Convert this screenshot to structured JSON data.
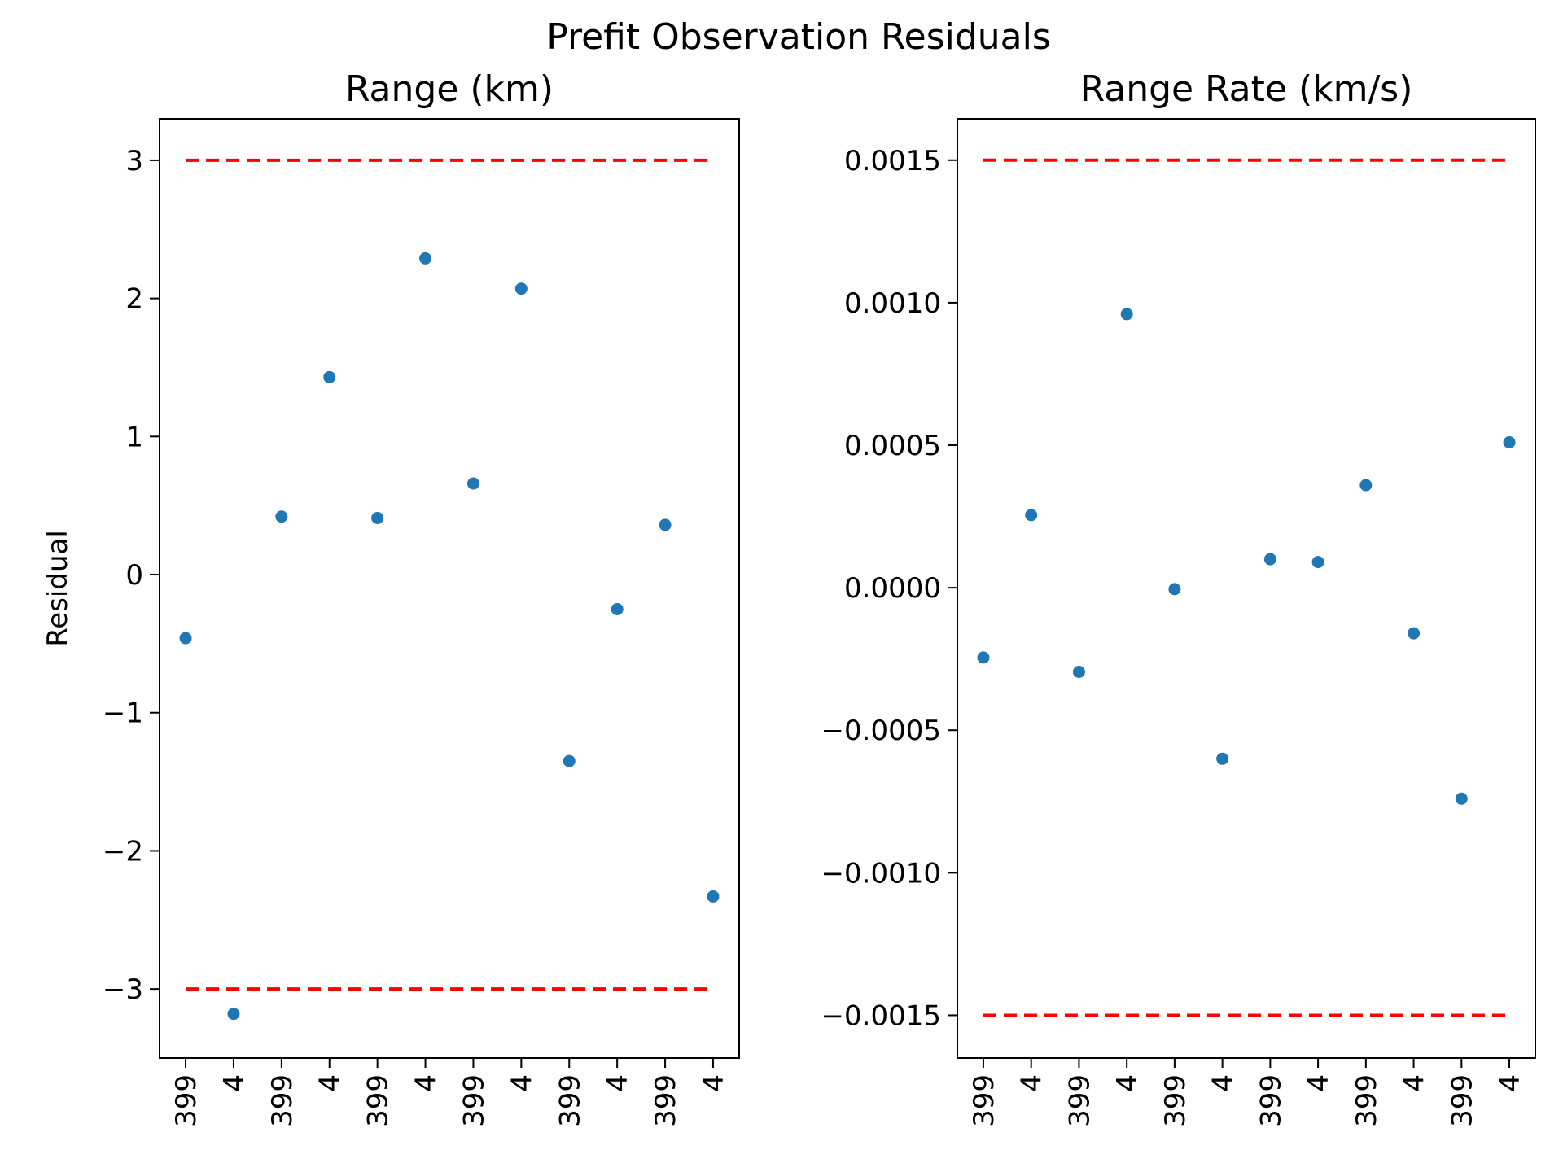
{
  "suptitle": "Prefit Observation Residuals",
  "colors": {
    "points": "#1f77b4",
    "bounds": "#ff0000",
    "axes": "#000000"
  },
  "chart_data": [
    {
      "type": "scatter",
      "title": "Range (km)",
      "xlabel": "",
      "ylabel": "Residual",
      "x_tick_labels": [
        "399",
        "4",
        "399",
        "4",
        "399",
        "4",
        "399",
        "4",
        "399",
        "4",
        "399",
        "4"
      ],
      "y_ticks": [
        -3,
        -2,
        -1,
        0,
        1,
        2,
        3
      ],
      "y_tick_labels": [
        "−3",
        "−2",
        "−1",
        "0",
        "1",
        "2",
        "3"
      ],
      "ylim": [
        -3.5,
        3.3
      ],
      "values": [
        -0.46,
        -3.18,
        0.42,
        1.43,
        0.41,
        2.29,
        0.66,
        2.07,
        -1.35,
        -0.25,
        0.36,
        -2.33
      ],
      "bounds": [
        3,
        -3
      ],
      "grid": false
    },
    {
      "type": "scatter",
      "title": "Range Rate (km/s)",
      "xlabel": "",
      "ylabel": "",
      "x_tick_labels": [
        "399",
        "4",
        "399",
        "4",
        "399",
        "4",
        "399",
        "4",
        "399",
        "4",
        "399",
        "4"
      ],
      "y_ticks": [
        -0.0015,
        -0.001,
        -0.0005,
        0,
        0.0005,
        0.001,
        0.0015
      ],
      "y_tick_labels": [
        "−0.0015",
        "−0.0010",
        "−0.0005",
        "0.0000",
        "0.0005",
        "0.0010",
        "0.0015"
      ],
      "ylim": [
        -0.00165,
        0.001645
      ],
      "values": [
        -0.000245,
        0.000255,
        -0.000295,
        0.00096,
        -5e-06,
        -0.0006,
        0.0001,
        9e-05,
        0.00036,
        -0.00016,
        -0.00074,
        0.00051
      ],
      "bounds": [
        0.0015,
        -0.0015
      ],
      "grid": false
    }
  ]
}
